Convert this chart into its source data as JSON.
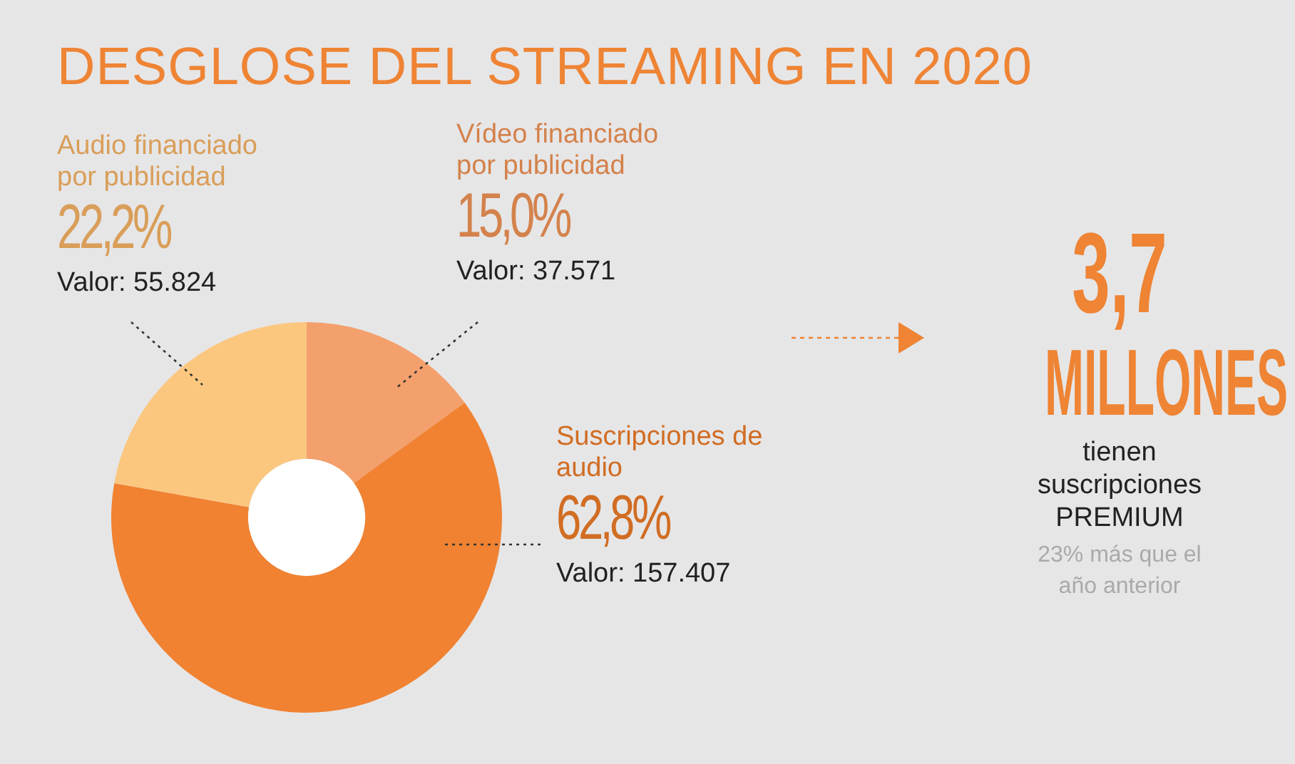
{
  "chart_data": {
    "type": "donut",
    "title": "DESGLOSE DEL STREAMING EN 2020",
    "categories": [
      "Vídeo financiado por publicidad",
      "Suscripciones de audio",
      "Audio financiado por publicidad"
    ],
    "values": [
      15.0,
      62.8,
      22.2
    ],
    "colors": [
      "#f4a06c",
      "#f08232",
      "#fbc77f"
    ],
    "value_labels": [
      "15,0%",
      "62,8%",
      "22,2%"
    ],
    "annotations": [
      "Valor: 37.571",
      "Valor: 157.407",
      "Valor: 55.824",
      "3,7",
      "MILLONES",
      "tienen suscripciones PREMIUM",
      "23% más que el año anterior"
    ],
    "legend": false
  }
}
